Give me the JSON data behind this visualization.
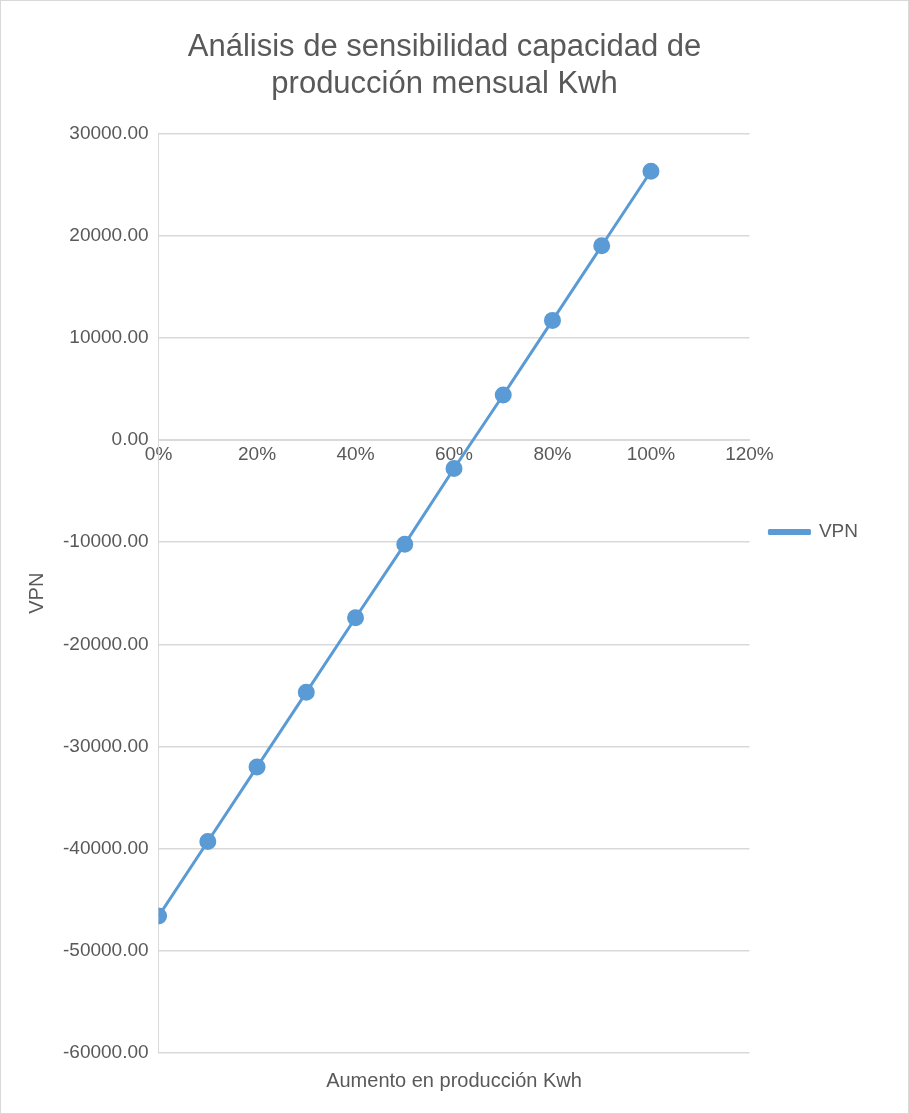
{
  "chart_data": {
    "type": "line",
    "title": "Análisis de sensibilidad capacidad de producción mensual Kwh",
    "xlabel": "Aumento en producción Kwh",
    "ylabel": "VPN",
    "x": [
      0,
      0.1,
      0.2,
      0.3,
      0.4,
      0.5,
      0.6,
      0.7,
      0.8,
      0.9,
      1.0
    ],
    "series": [
      {
        "name": "VPN",
        "color": "#5b9bd5",
        "values": [
          -46600,
          -39300,
          -32000,
          -24700,
          -17400,
          -10200,
          -2800,
          4400,
          11700,
          19000,
          26300
        ]
      }
    ],
    "xlim": [
      0,
      1.2
    ],
    "xticks": [
      {
        "value": 0,
        "label": "0%"
      },
      {
        "value": 0.2,
        "label": "20%"
      },
      {
        "value": 0.4,
        "label": "40%"
      },
      {
        "value": 0.6,
        "label": "60%"
      },
      {
        "value": 0.8,
        "label": "80%"
      },
      {
        "value": 1.0,
        "label": "100%"
      },
      {
        "value": 1.2,
        "label": "120%"
      }
    ],
    "ylim": [
      -60000,
      30000
    ],
    "yticks": [
      {
        "value": -60000,
        "label": "-60000.00"
      },
      {
        "value": -50000,
        "label": "-50000.00"
      },
      {
        "value": -40000,
        "label": "-40000.00"
      },
      {
        "value": -30000,
        "label": "-30000.00"
      },
      {
        "value": -20000,
        "label": "-20000.00"
      },
      {
        "value": -10000,
        "label": "-10000.00"
      },
      {
        "value": 0,
        "label": "0.00"
      },
      {
        "value": 10000,
        "label": "10000.00"
      },
      {
        "value": 20000,
        "label": "20000.00"
      },
      {
        "value": 30000,
        "label": "30000.00"
      }
    ],
    "grid": "y",
    "legend": "right",
    "marker": "circle",
    "line_style": "solid"
  }
}
